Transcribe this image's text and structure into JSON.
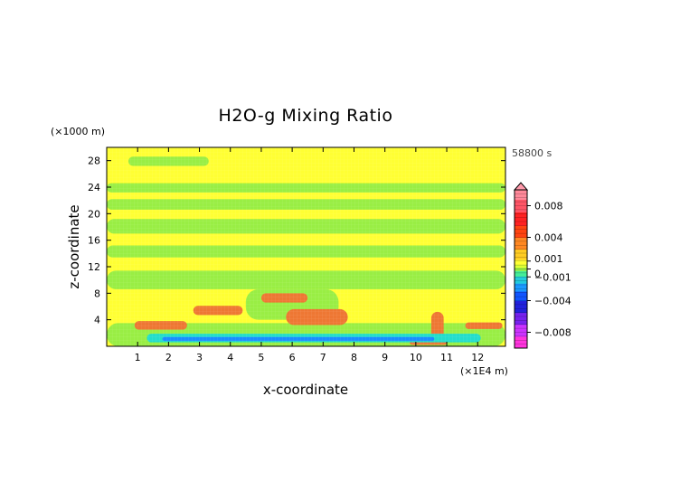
{
  "colors": {
    "yellow": "#ffff33",
    "green": "#99ee44",
    "cyan": "#22ddcc",
    "blue": "#1a8cff",
    "orange": "#ee7733",
    "red_peak": "#ff2222",
    "dark_blue": "#1a1acc",
    "magenta": "#ff22cc",
    "pink": "#ff99aa"
  },
  "chart_data": {
    "type": "heatmap",
    "title": "H2O-g Mixing Ratio",
    "xlabel": "x-coordinate",
    "ylabel": "z-coordinate",
    "x_unit": "(×1E4 m)",
    "y_unit": "(×1000 m)",
    "time_label": "58800 s",
    "xlim": [
      0,
      12.9
    ],
    "ylim": [
      0,
      30
    ],
    "x_ticks": [
      1,
      2,
      3,
      4,
      5,
      6,
      7,
      8,
      9,
      10,
      11,
      12
    ],
    "y_ticks": [
      4,
      8,
      12,
      16,
      20,
      24,
      28
    ],
    "colorbar": {
      "range": [
        -0.01,
        0.01
      ],
      "tick_labels": [
        {
          "label": "0.008",
          "value": 0.008
        },
        {
          "label": "0.004",
          "value": 0.004
        },
        {
          "label": "0.001",
          "value": 0.001
        },
        {
          "label": "0",
          "value": 0
        },
        {
          "label": "−0.001",
          "value": -0.001
        },
        {
          "label": "−0.004",
          "value": -0.004
        },
        {
          "label": "−0.008",
          "value": -0.008
        }
      ],
      "extend": "top"
    },
    "background_value": 0.0004,
    "regions": [
      {
        "level": "green",
        "value": -0.0003,
        "x": [
          0,
          12.9
        ],
        "z": [
          0,
          3.5
        ]
      },
      {
        "level": "green",
        "value": -0.0003,
        "x": [
          0,
          12.9
        ],
        "z": [
          8.6,
          11.4
        ]
      },
      {
        "level": "green",
        "value": -0.0003,
        "x": [
          0,
          12.9
        ],
        "z": [
          13.4,
          15.2
        ]
      },
      {
        "level": "green",
        "value": -0.0003,
        "x": [
          0,
          12.9
        ],
        "z": [
          17.0,
          19.2
        ]
      },
      {
        "level": "green",
        "value": -0.0003,
        "x": [
          0,
          12.9
        ],
        "z": [
          20.6,
          22.2
        ]
      },
      {
        "level": "green",
        "value": -0.0003,
        "x": [
          0,
          12.9
        ],
        "z": [
          23.2,
          24.6
        ]
      },
      {
        "level": "green",
        "value": -0.0003,
        "x": [
          0.7,
          3.3
        ],
        "z": [
          27.2,
          28.6
        ]
      },
      {
        "level": "green",
        "value": -0.0003,
        "x": [
          4.5,
          7.5
        ],
        "z": [
          4.0,
          8.6
        ]
      },
      {
        "level": "orange",
        "value": 0.002,
        "x": [
          0.9,
          2.6
        ],
        "z": [
          2.5,
          3.8
        ]
      },
      {
        "level": "orange",
        "value": 0.002,
        "x": [
          2.8,
          4.4
        ],
        "z": [
          4.7,
          6.1
        ]
      },
      {
        "level": "orange",
        "value": 0.002,
        "x": [
          5.0,
          6.5
        ],
        "z": [
          6.6,
          8.0
        ]
      },
      {
        "level": "orange",
        "value": 0.002,
        "x": [
          5.8,
          7.8
        ],
        "z": [
          3.2,
          5.6
        ]
      },
      {
        "level": "orange",
        "value": 0.002,
        "x": [
          10.5,
          10.9
        ],
        "z": [
          0.4,
          5.2
        ]
      },
      {
        "level": "orange",
        "value": 0.002,
        "x": [
          11.6,
          12.8
        ],
        "z": [
          2.6,
          3.6
        ]
      },
      {
        "level": "orange",
        "value": 0.002,
        "x": [
          9.8,
          11.0
        ],
        "z": [
          0.2,
          1.0
        ]
      },
      {
        "level": "cyan",
        "value": -0.002,
        "x": [
          1.3,
          12.1
        ],
        "z": [
          0.6,
          1.9
        ]
      },
      {
        "level": "blue",
        "value": -0.003,
        "x": [
          1.8,
          10.6
        ],
        "z": [
          0.8,
          1.4
        ]
      }
    ]
  }
}
